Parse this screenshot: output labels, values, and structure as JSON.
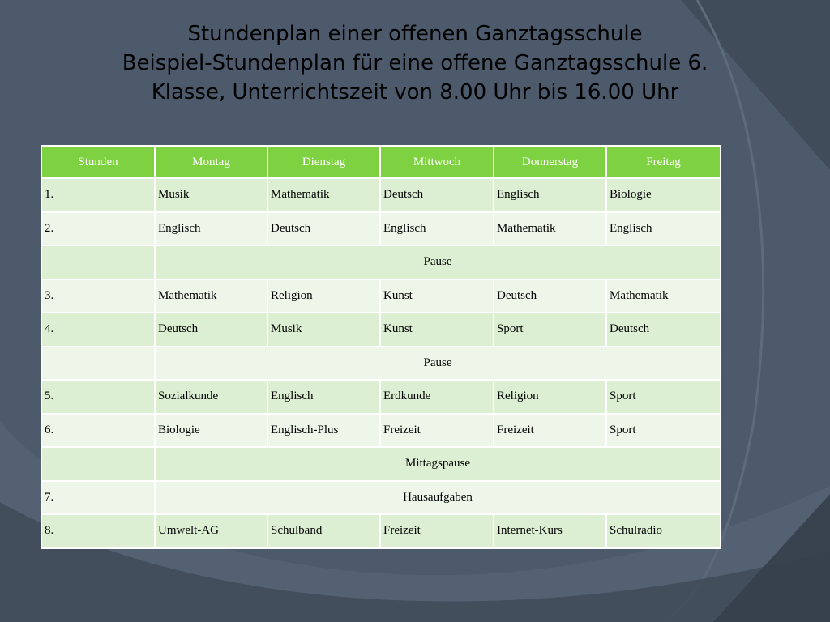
{
  "title": {
    "line1": "Stundenplan einer offenen Ganztagsschule",
    "line2": "Beispiel-Stundenplan für eine offene Ganztagsschule 6.",
    "line3": "Klasse, Unterrichtszeit von 8.00 Uhr bis 16.00 Uhr"
  },
  "table": {
    "headers": [
      "Stunden",
      "Montag",
      "Dienstag",
      "Mittwoch",
      "Donnerstag",
      "Freitag"
    ],
    "rows": [
      {
        "cells": [
          "1.",
          "Musik",
          "Mathematik",
          "Deutsch",
          "Englisch",
          "Biologie"
        ]
      },
      {
        "cells": [
          "2.",
          "Englisch",
          "Deutsch",
          "Englisch",
          "Mathematik",
          "Englisch"
        ]
      },
      {
        "cells": [
          "",
          "Pause"
        ]
      },
      {
        "cells": [
          "3.",
          "Mathematik",
          "Religion",
          "Kunst",
          "Deutsch",
          "Mathematik"
        ]
      },
      {
        "cells": [
          "4.",
          "Deutsch",
          "Musik",
          "Kunst",
          "Sport",
          "Deutsch"
        ]
      },
      {
        "cells": [
          "",
          "Pause"
        ]
      },
      {
        "cells": [
          "5.",
          "Sozialkunde",
          "Englisch",
          "Erdkunde",
          "Religion",
          "Sport"
        ]
      },
      {
        "cells": [
          "6.",
          "Biologie",
          "Englisch-Plus",
          "Freizeit",
          "Freizeit",
          "Sport"
        ]
      },
      {
        "cells": [
          "",
          "Mittagspause"
        ]
      },
      {
        "cells": [
          "7.",
          "Hausaufgaben"
        ]
      },
      {
        "cells": [
          "8.",
          "Umwelt-AG",
          "Schulband",
          "Freizeit",
          "Internet-Kurs",
          "Schulradio"
        ]
      }
    ]
  },
  "colors": {
    "background": "#4d5a6b",
    "header": "#7ed140",
    "row_dark": "#dcefd3",
    "row_light": "#eef6ea"
  }
}
